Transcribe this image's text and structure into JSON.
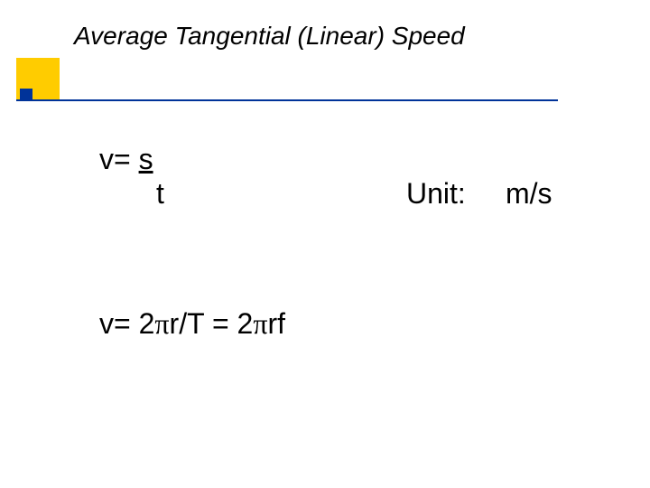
{
  "title": "Average Tangential (Linear) Speed",
  "eq1": {
    "lhs": "v=",
    "numerator": "s",
    "denominator": "t"
  },
  "unit": {
    "label": "Unit:",
    "value": "m/s"
  },
  "eq2": {
    "prefix": "v= 2",
    "pi1": "π",
    "mid": "r/T = 2",
    "pi2": "π",
    "suffix": "rf"
  },
  "colors": {
    "accent_gold": "#ffcc00",
    "accent_blue": "#003399",
    "text": "#000000",
    "background": "#ffffff"
  },
  "fonts": {
    "body": "Verdana",
    "title_style": "italic",
    "title_size_pt": 21,
    "body_size_pt": 24
  }
}
